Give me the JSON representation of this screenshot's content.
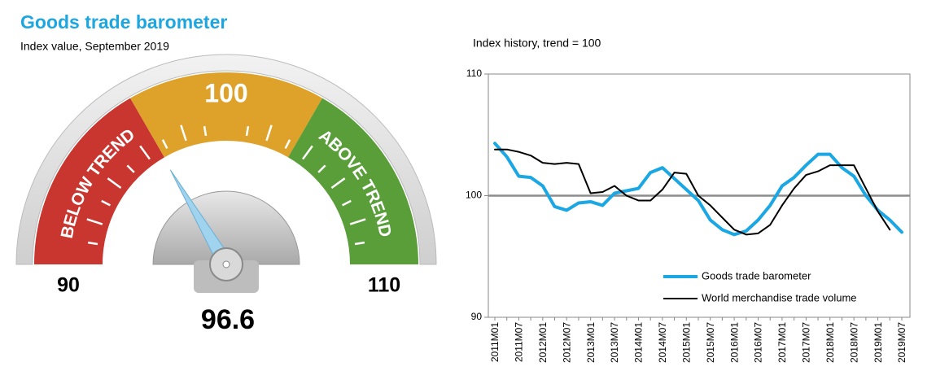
{
  "chart_data": [
    {
      "type": "gauge",
      "title": "Goods trade barometer",
      "subtitle": "Index value, September 2019",
      "value": 96.6,
      "range": [
        90,
        110
      ],
      "ticks": [
        90,
        100,
        110
      ],
      "bands": [
        {
          "label": "BELOW TREND",
          "color": "#c9352f"
        },
        {
          "label": null,
          "color": "#dea22a"
        },
        {
          "label": "ABOVE TREND",
          "color": "#5a9e3a"
        }
      ],
      "needle_color": "#9fd3ee"
    },
    {
      "type": "line",
      "title": "Index history, trend = 100",
      "categories": [
        "2011M01",
        null,
        "2011M07",
        null,
        "2012M01",
        null,
        "2012M07",
        null,
        "2013M01",
        null,
        "2013M07",
        null,
        "2014M01",
        null,
        "2014M07",
        null,
        "2015M01",
        null,
        "2015M07",
        null,
        "2016M01",
        null,
        "2016M07",
        null,
        "2017M01",
        null,
        "2017M07",
        null,
        "2018M01",
        null,
        "2018M07",
        null,
        "2019M01",
        null,
        "2019M07"
      ],
      "series": [
        {
          "name": "Goods trade barometer",
          "color": "#1aa7e4",
          "values": [
            104.3,
            103.2,
            101.6,
            101.5,
            100.8,
            99.1,
            98.8,
            99.4,
            99.5,
            99.2,
            100.2,
            100.4,
            100.6,
            101.9,
            102.3,
            101.4,
            100.5,
            99.6,
            98.0,
            97.2,
            96.8,
            97.1,
            98.0,
            99.2,
            100.8,
            101.5,
            102.5,
            103.4,
            103.4,
            102.3,
            101.6,
            100.0,
            98.8,
            98.0,
            97.0
          ]
        },
        {
          "name": "World merchandise trade volume",
          "color": "#000000",
          "values": [
            103.8,
            103.8,
            103.6,
            103.3,
            102.7,
            102.6,
            102.7,
            102.6,
            100.2,
            100.3,
            100.8,
            100.0,
            99.6,
            99.6,
            100.5,
            101.9,
            101.8,
            100.0,
            99.2,
            98.2,
            97.2,
            96.8,
            96.9,
            97.6,
            99.2,
            100.6,
            101.7,
            102.0,
            102.5,
            102.5,
            102.5,
            100.6,
            98.7,
            97.2,
            null
          ]
        }
      ],
      "ylim": [
        90,
        110
      ],
      "yticks": [
        90,
        100,
        110
      ],
      "reference": 100,
      "legend": "lower-right"
    }
  ]
}
